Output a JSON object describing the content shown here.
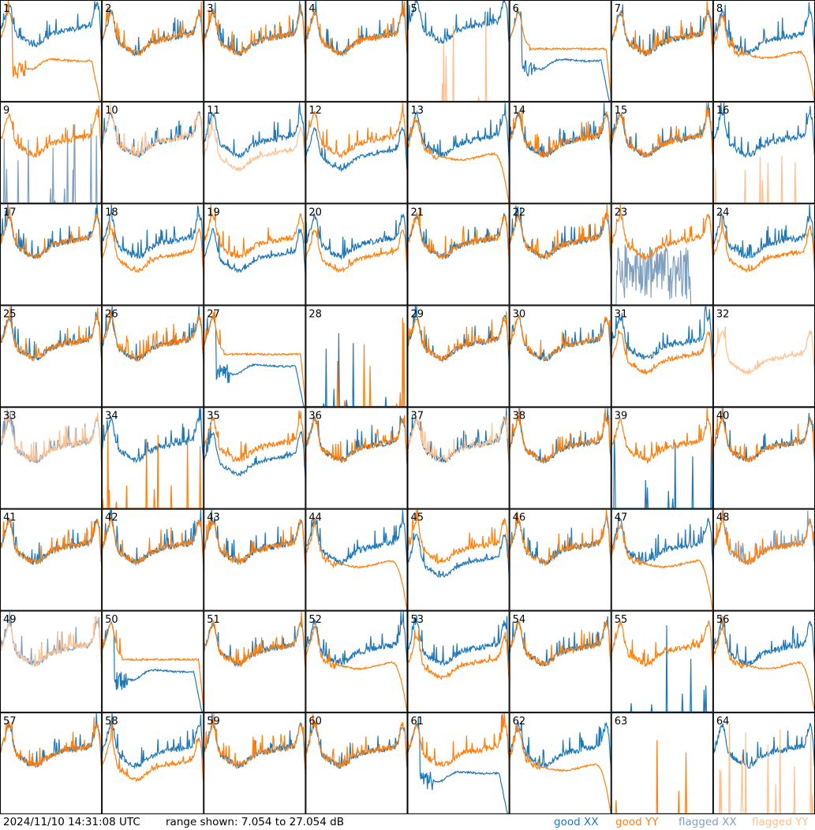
{
  "footer": {
    "timestamp": "2024/11/10 14:31:08 UTC",
    "range_text": "range shown: 7.054 to 27.054 dB"
  },
  "legend": {
    "good_xx": "good XX",
    "good_yy": "good YY",
    "flagged_xx": "flagged XX",
    "flagged_yy": "flagged YY"
  },
  "colors": {
    "good_xx": "#1f77b4",
    "good_yy": "#ff7f0e",
    "flagged_xx": "#7f9fbf",
    "flagged_yy": "#ffc08f"
  },
  "chart_data": {
    "type": "line",
    "ylim": [
      7.054,
      27.054
    ],
    "x_unit": "channel (normalized)",
    "grid": false,
    "legend_placement": "bottom-right",
    "panels": [
      {
        "id": 1,
        "xx": {
          "s": "good",
          "p": "mid_hi"
        },
        "yy": {
          "s": "good",
          "p": "dip_low"
        }
      },
      {
        "id": 2,
        "xx": {
          "s": "good",
          "p": "normal"
        },
        "yy": {
          "s": "good",
          "p": "normal"
        }
      },
      {
        "id": 3,
        "xx": {
          "s": "good",
          "p": "normal"
        },
        "yy": {
          "s": "good",
          "p": "normal"
        }
      },
      {
        "id": 4,
        "xx": {
          "s": "good",
          "p": "normal"
        },
        "yy": {
          "s": "good",
          "p": "normal"
        }
      },
      {
        "id": 5,
        "xx": {
          "s": "good",
          "p": "high"
        },
        "yy": {
          "s": "flagged",
          "p": "zero_spike"
        }
      },
      {
        "id": 6,
        "xx": {
          "s": "good",
          "p": "dip_low"
        },
        "yy": {
          "s": "good",
          "p": "flat_hi"
        }
      },
      {
        "id": 7,
        "xx": {
          "s": "good",
          "p": "normal"
        },
        "yy": {
          "s": "good",
          "p": "normal"
        }
      },
      {
        "id": 8,
        "xx": {
          "s": "good",
          "p": "normal"
        },
        "yy": {
          "s": "good",
          "p": "rolloff"
        }
      },
      {
        "id": 9,
        "xx": {
          "s": "flagged",
          "p": "zero_spike"
        },
        "yy": {
          "s": "good",
          "p": "normal"
        }
      },
      {
        "id": 10,
        "xx": {
          "s": "good",
          "p": "normal"
        },
        "yy": {
          "s": "flagged",
          "p": "normal"
        }
      },
      {
        "id": 11,
        "xx": {
          "s": "good",
          "p": "normal"
        },
        "yy": {
          "s": "flagged",
          "p": "low"
        }
      },
      {
        "id": 12,
        "xx": {
          "s": "good",
          "p": "low"
        },
        "yy": {
          "s": "good",
          "p": "normal"
        }
      },
      {
        "id": 13,
        "xx": {
          "s": "good",
          "p": "normal"
        },
        "yy": {
          "s": "good",
          "p": "rolloff"
        }
      },
      {
        "id": 14,
        "xx": {
          "s": "good",
          "p": "normal"
        },
        "yy": {
          "s": "good",
          "p": "normal"
        }
      },
      {
        "id": 15,
        "xx": {
          "s": "good",
          "p": "normal"
        },
        "yy": {
          "s": "good",
          "p": "normal"
        }
      },
      {
        "id": 16,
        "xx": {
          "s": "good",
          "p": "normal"
        },
        "yy": {
          "s": "flagged",
          "p": "zero_spike"
        }
      },
      {
        "id": 17,
        "xx": {
          "s": "good",
          "p": "normal"
        },
        "yy": {
          "s": "good",
          "p": "normal"
        }
      },
      {
        "id": 18,
        "xx": {
          "s": "good",
          "p": "normal"
        },
        "yy": {
          "s": "good",
          "p": "low"
        }
      },
      {
        "id": 19,
        "xx": {
          "s": "good",
          "p": "low"
        },
        "yy": {
          "s": "good",
          "p": "normal"
        }
      },
      {
        "id": 20,
        "xx": {
          "s": "good",
          "p": "normal"
        },
        "yy": {
          "s": "good",
          "p": "low"
        }
      },
      {
        "id": 21,
        "xx": {
          "s": "good",
          "p": "normal"
        },
        "yy": {
          "s": "good",
          "p": "normal"
        }
      },
      {
        "id": 22,
        "xx": {
          "s": "good",
          "p": "normal"
        },
        "yy": {
          "s": "good",
          "p": "normal"
        }
      },
      {
        "id": 23,
        "xx": {
          "s": "flagged",
          "p": "noisy_mid"
        },
        "yy": {
          "s": "good",
          "p": "normal"
        }
      },
      {
        "id": 24,
        "xx": {
          "s": "good",
          "p": "normal"
        },
        "yy": {
          "s": "good",
          "p": "low"
        }
      },
      {
        "id": 25,
        "xx": {
          "s": "good",
          "p": "normal"
        },
        "yy": {
          "s": "good",
          "p": "normal"
        }
      },
      {
        "id": 26,
        "xx": {
          "s": "good",
          "p": "normal"
        },
        "yy": {
          "s": "good",
          "p": "normal"
        }
      },
      {
        "id": 27,
        "xx": {
          "s": "good",
          "p": "dip_low"
        },
        "yy": {
          "s": "good",
          "p": "flat_hi"
        }
      },
      {
        "id": 28,
        "xx": {
          "s": "good",
          "p": "zero_spike"
        },
        "yy": {
          "s": "good",
          "p": "zero_spike"
        }
      },
      {
        "id": 29,
        "xx": {
          "s": "good",
          "p": "normal"
        },
        "yy": {
          "s": "good",
          "p": "normal"
        }
      },
      {
        "id": 30,
        "xx": {
          "s": "good",
          "p": "normal"
        },
        "yy": {
          "s": "good",
          "p": "normal"
        }
      },
      {
        "id": 31,
        "xx": {
          "s": "good",
          "p": "normal"
        },
        "yy": {
          "s": "good",
          "p": "low"
        }
      },
      {
        "id": 32,
        "xx": {
          "s": "flagged",
          "p": "zero"
        },
        "yy": {
          "s": "flagged",
          "p": "low"
        }
      },
      {
        "id": 33,
        "xx": {
          "s": "flagged",
          "p": "normal"
        },
        "yy": {
          "s": "flagged",
          "p": "normal"
        }
      },
      {
        "id": 34,
        "xx": {
          "s": "good",
          "p": "normal"
        },
        "yy": {
          "s": "good",
          "p": "zero_spike"
        }
      },
      {
        "id": 35,
        "xx": {
          "s": "good",
          "p": "low"
        },
        "yy": {
          "s": "good",
          "p": "normal"
        }
      },
      {
        "id": 36,
        "xx": {
          "s": "good",
          "p": "normal"
        },
        "yy": {
          "s": "good",
          "p": "normal"
        }
      },
      {
        "id": 37,
        "xx": {
          "s": "good",
          "p": "normal"
        },
        "yy": {
          "s": "flagged",
          "p": "normal"
        }
      },
      {
        "id": 38,
        "xx": {
          "s": "good",
          "p": "normal"
        },
        "yy": {
          "s": "good",
          "p": "normal"
        }
      },
      {
        "id": 39,
        "xx": {
          "s": "good",
          "p": "zero_spike"
        },
        "yy": {
          "s": "good",
          "p": "normal"
        }
      },
      {
        "id": 40,
        "xx": {
          "s": "good",
          "p": "normal"
        },
        "yy": {
          "s": "good",
          "p": "normal"
        }
      },
      {
        "id": 41,
        "xx": {
          "s": "good",
          "p": "normal"
        },
        "yy": {
          "s": "good",
          "p": "normal"
        }
      },
      {
        "id": 42,
        "xx": {
          "s": "good",
          "p": "normal"
        },
        "yy": {
          "s": "good",
          "p": "normal"
        }
      },
      {
        "id": 43,
        "xx": {
          "s": "good",
          "p": "normal"
        },
        "yy": {
          "s": "good",
          "p": "normal"
        }
      },
      {
        "id": 44,
        "xx": {
          "s": "good",
          "p": "normal"
        },
        "yy": {
          "s": "good",
          "p": "rolloff"
        }
      },
      {
        "id": 45,
        "xx": {
          "s": "good",
          "p": "low"
        },
        "yy": {
          "s": "good",
          "p": "normal"
        }
      },
      {
        "id": 46,
        "xx": {
          "s": "good",
          "p": "normal"
        },
        "yy": {
          "s": "good",
          "p": "normal"
        }
      },
      {
        "id": 47,
        "xx": {
          "s": "good",
          "p": "normal"
        },
        "yy": {
          "s": "good",
          "p": "rolloff"
        }
      },
      {
        "id": 48,
        "xx": {
          "s": "flagged",
          "p": "normal"
        },
        "yy": {
          "s": "good",
          "p": "normal"
        }
      },
      {
        "id": 49,
        "xx": {
          "s": "flagged",
          "p": "normal"
        },
        "yy": {
          "s": "flagged",
          "p": "normal"
        }
      },
      {
        "id": 50,
        "xx": {
          "s": "good",
          "p": "dip_low"
        },
        "yy": {
          "s": "good",
          "p": "flat_hi"
        }
      },
      {
        "id": 51,
        "xx": {
          "s": "good",
          "p": "normal"
        },
        "yy": {
          "s": "good",
          "p": "normal"
        }
      },
      {
        "id": 52,
        "xx": {
          "s": "good",
          "p": "normal"
        },
        "yy": {
          "s": "good",
          "p": "rolloff"
        }
      },
      {
        "id": 53,
        "xx": {
          "s": "good",
          "p": "normal"
        },
        "yy": {
          "s": "good",
          "p": "low"
        }
      },
      {
        "id": 54,
        "xx": {
          "s": "good",
          "p": "normal"
        },
        "yy": {
          "s": "good",
          "p": "normal"
        }
      },
      {
        "id": 55,
        "xx": {
          "s": "good",
          "p": "zero_spike"
        },
        "yy": {
          "s": "good",
          "p": "normal"
        }
      },
      {
        "id": 56,
        "xx": {
          "s": "good",
          "p": "normal"
        },
        "yy": {
          "s": "good",
          "p": "rolloff"
        }
      },
      {
        "id": 57,
        "xx": {
          "s": "good",
          "p": "normal"
        },
        "yy": {
          "s": "good",
          "p": "normal"
        }
      },
      {
        "id": 58,
        "xx": {
          "s": "good",
          "p": "normal"
        },
        "yy": {
          "s": "good",
          "p": "low"
        }
      },
      {
        "id": 59,
        "xx": {
          "s": "good",
          "p": "normal"
        },
        "yy": {
          "s": "good",
          "p": "normal"
        }
      },
      {
        "id": 60,
        "xx": {
          "s": "good",
          "p": "normal"
        },
        "yy": {
          "s": "good",
          "p": "normal"
        }
      },
      {
        "id": 61,
        "xx": {
          "s": "good",
          "p": "dip_low"
        },
        "yy": {
          "s": "good",
          "p": "normal"
        }
      },
      {
        "id": 62,
        "xx": {
          "s": "good",
          "p": "normal"
        },
        "yy": {
          "s": "good",
          "p": "rolloff"
        }
      },
      {
        "id": 63,
        "xx": {
          "s": "good",
          "p": "zero"
        },
        "yy": {
          "s": "good",
          "p": "zero_spike"
        }
      },
      {
        "id": 64,
        "xx": {
          "s": "good",
          "p": "normal"
        },
        "yy": {
          "s": "flagged",
          "p": "zero_spike"
        }
      }
    ]
  }
}
